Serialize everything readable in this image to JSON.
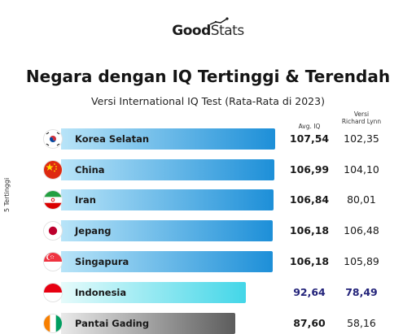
{
  "header": {
    "logo_good": "Good",
    "logo_stats": "Stats",
    "title": "Negara dengan IQ Tertinggi & Terendah",
    "subtitle": "Versi International IQ Test (Rata-Rata di 2023)"
  },
  "columns": {
    "avg_label": "Avg. IQ",
    "lynn_label_line1": "Versi",
    "lynn_label_line2": "Richard Lynn"
  },
  "side_label": "5 Tertinggi",
  "colors": {
    "top_bar_start": "#b8e4f8",
    "top_bar_end": "#1d8fd8",
    "indonesia_bar_start": "#e6fbfb",
    "indonesia_bar_end": "#43d6e8",
    "bottom_bar_start": "#e9e9e9",
    "bottom_bar_end": "#5c5c5c",
    "indonesia_text": "#23237a"
  },
  "chart_data": {
    "type": "bar",
    "orientation": "horizontal",
    "categories": [
      "Korea Selatan",
      "China",
      "Iran",
      "Jepang",
      "Singapura",
      "Indonesia",
      "Pantai Gading"
    ],
    "series": [
      {
        "name": "Avg. IQ",
        "values": [
          107.54,
          106.99,
          106.84,
          106.18,
          106.18,
          92.64,
          87.6
        ]
      },
      {
        "name": "Versi Richard Lynn",
        "values": [
          102.35,
          104.1,
          80.01,
          106.48,
          105.89,
          78.49,
          58.16
        ]
      }
    ],
    "value_labels": {
      "avg": [
        "107,54",
        "106,99",
        "106,84",
        "106,18",
        "106,18",
        "92,64",
        "87,60"
      ],
      "lynn": [
        "102,35",
        "104,10",
        "80,01",
        "106,48",
        "105,89",
        "78,49",
        "58,16"
      ]
    },
    "flags": [
      "korea-flag",
      "china-flag",
      "iran-flag",
      "japan-flag",
      "singapore-flag",
      "indonesia-flag",
      "ivory-coast-flag"
    ],
    "groups": [
      "top",
      "top",
      "top",
      "top",
      "top",
      "indonesia",
      "bottom"
    ],
    "xlim": [
      0,
      107.54
    ]
  }
}
